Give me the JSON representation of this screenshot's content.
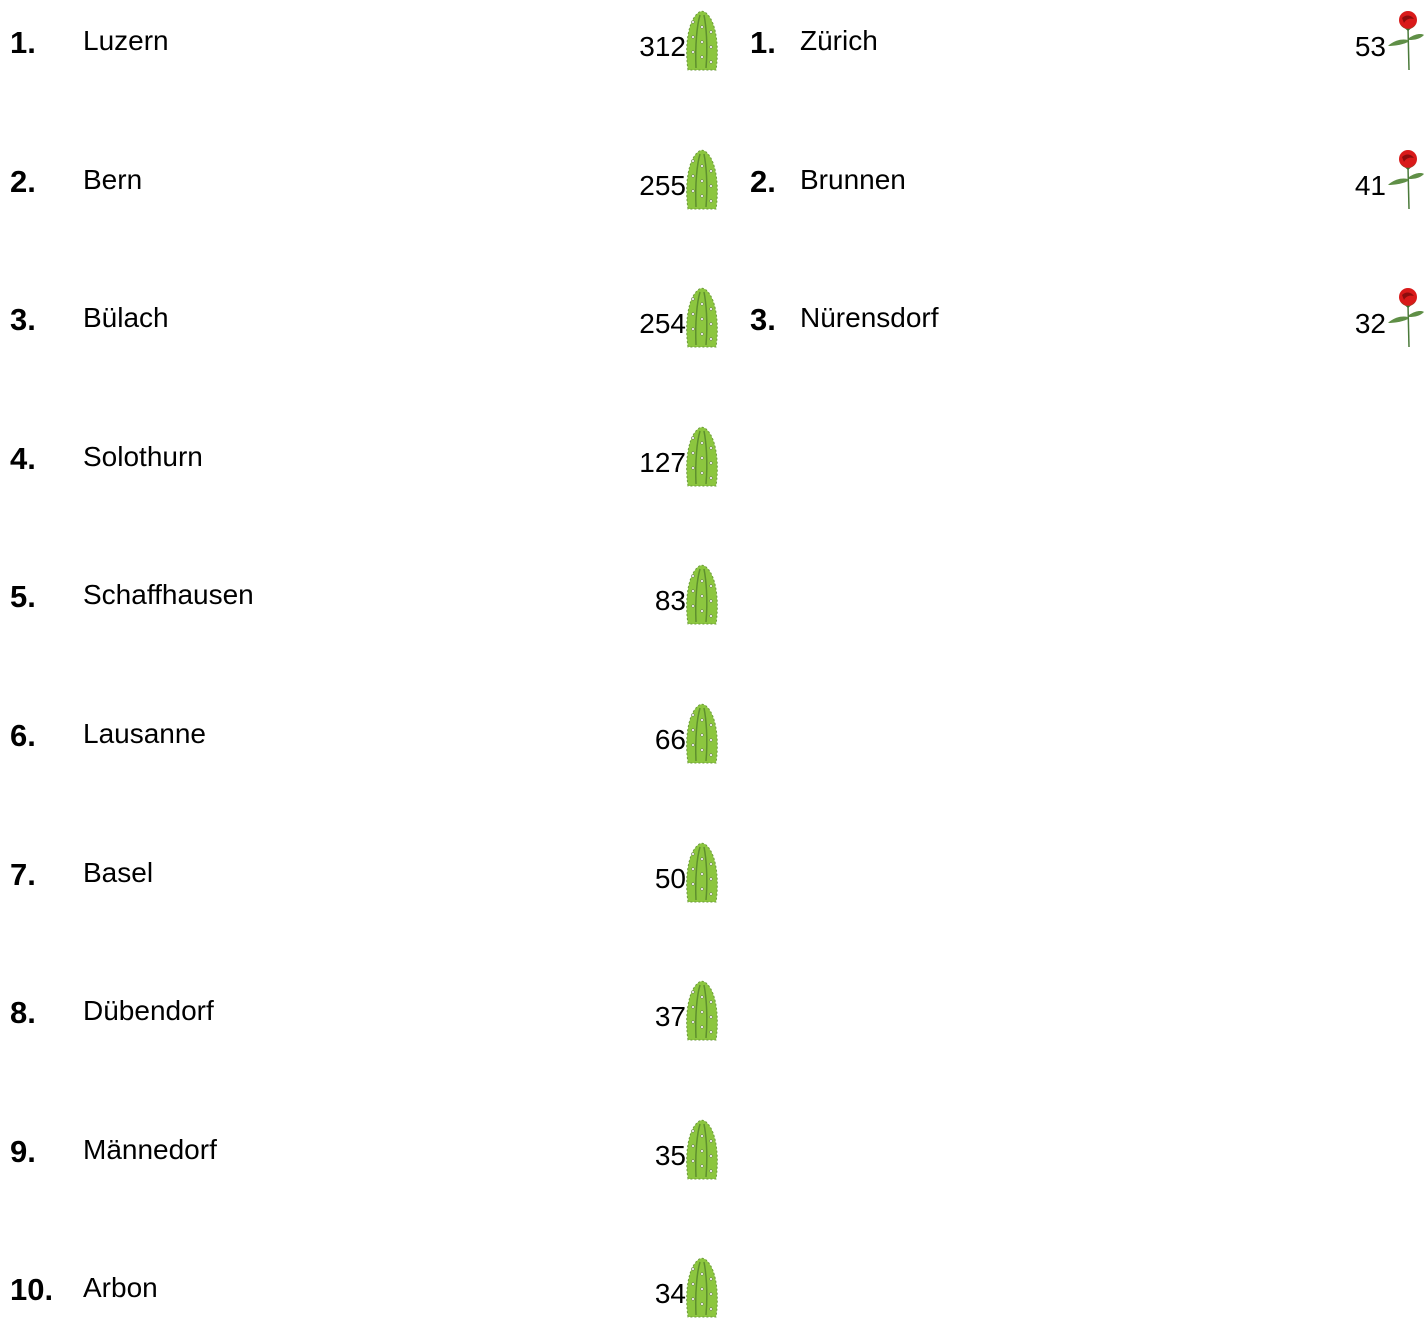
{
  "left": {
    "rows": [
      {
        "rank": "1.",
        "name": "Luzern",
        "count": 312
      },
      {
        "rank": "2.",
        "name": "Bern",
        "count": 255
      },
      {
        "rank": "3.",
        "name": "Bülach",
        "count": 254
      },
      {
        "rank": "4.",
        "name": "Solothurn",
        "count": 127
      },
      {
        "rank": "5.",
        "name": "Schaffhausen",
        "count": 83
      },
      {
        "rank": "6.",
        "name": "Lausanne",
        "count": 66
      },
      {
        "rank": "7.",
        "name": "Basel",
        "count": 50
      },
      {
        "rank": "8.",
        "name": "Dübendorf",
        "count": 37
      },
      {
        "rank": "9.",
        "name": "Männedorf",
        "count": 35
      },
      {
        "rank": "10.",
        "name": "Arbon",
        "count": 34
      }
    ]
  },
  "right": {
    "rows": [
      {
        "rank": "1.",
        "name": "Zürich",
        "count": 53
      },
      {
        "rank": "2.",
        "name": "Brunnen",
        "count": 41
      },
      {
        "rank": "3.",
        "name": "Nürensdorf",
        "count": 32
      }
    ]
  }
}
